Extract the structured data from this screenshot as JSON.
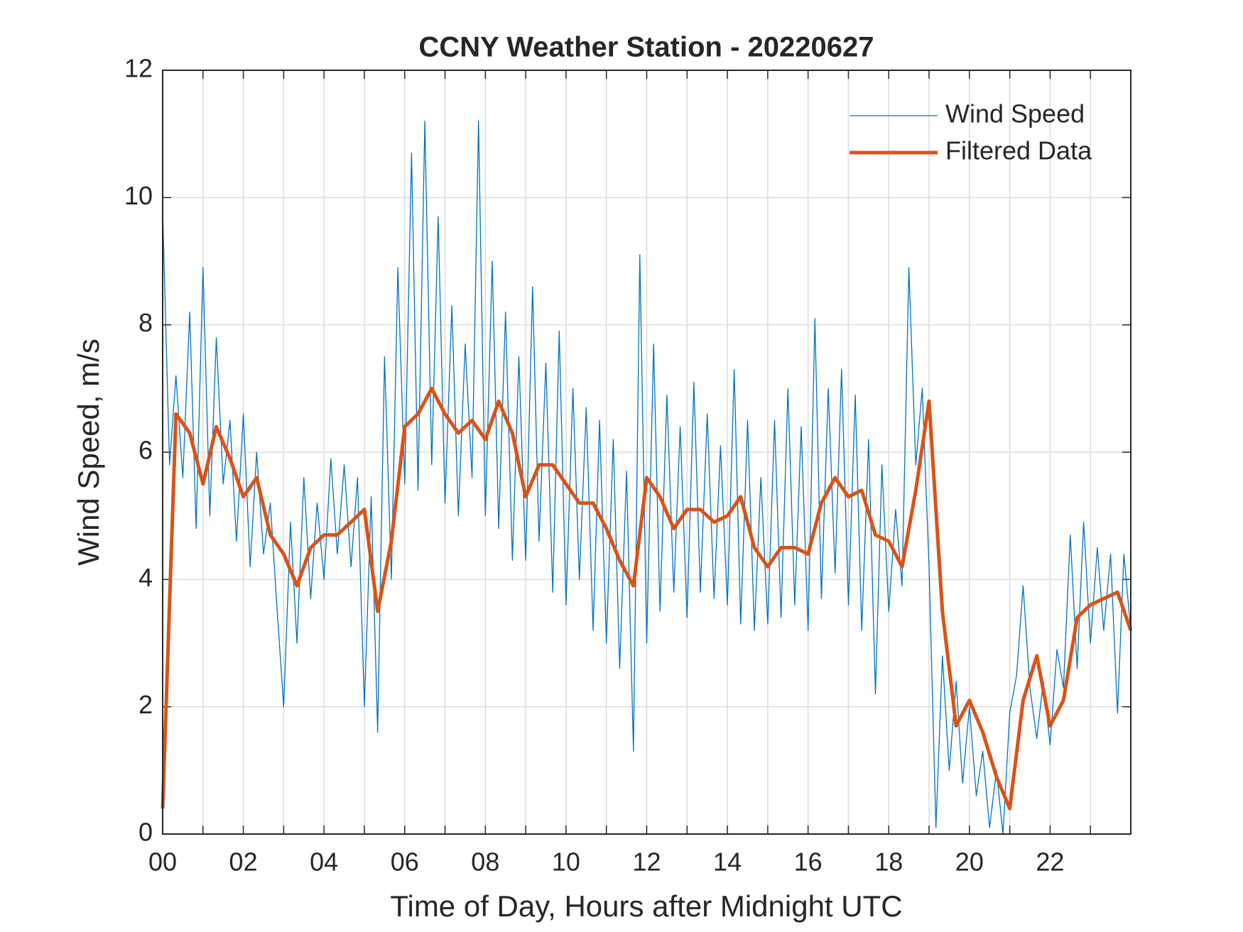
{
  "chart_data": {
    "type": "line",
    "title": "CCNY Weather Station - 20220627",
    "x_label": "Time of Day, Hours after Midnight UTC",
    "y_label": "Wind Speed, m/s",
    "xlim": [
      0,
      24
    ],
    "ylim": [
      0,
      12
    ],
    "xticks": [
      {
        "value": 0,
        "label": "00"
      },
      {
        "value": 2,
        "label": "02"
      },
      {
        "value": 4,
        "label": "04"
      },
      {
        "value": 6,
        "label": "06"
      },
      {
        "value": 8,
        "label": "08"
      },
      {
        "value": 10,
        "label": "10"
      },
      {
        "value": 12,
        "label": "12"
      },
      {
        "value": 14,
        "label": "14"
      },
      {
        "value": 16,
        "label": "16"
      },
      {
        "value": 18,
        "label": "18"
      },
      {
        "value": 20,
        "label": "20"
      },
      {
        "value": 22,
        "label": "22"
      }
    ],
    "x_minor_ticks": [
      1,
      3,
      5,
      7,
      9,
      11,
      13,
      15,
      17,
      19,
      21,
      23
    ],
    "yticks": [
      0,
      2,
      4,
      6,
      8,
      10,
      12
    ],
    "grid": true,
    "legend": "northeast",
    "series": [
      {
        "name": "Wind Speed",
        "color": "#0072bd",
        "width": 1.3,
        "x": [
          0,
          0.17,
          0.33,
          0.5,
          0.67,
          0.83,
          1,
          1.17,
          1.33,
          1.5,
          1.67,
          1.83,
          2,
          2.17,
          2.33,
          2.5,
          2.67,
          2.83,
          3,
          3.17,
          3.33,
          3.5,
          3.67,
          3.83,
          4,
          4.17,
          4.33,
          4.5,
          4.67,
          4.83,
          5,
          5.17,
          5.33,
          5.5,
          5.67,
          5.83,
          6,
          6.17,
          6.33,
          6.5,
          6.67,
          6.83,
          7,
          7.17,
          7.33,
          7.5,
          7.67,
          7.83,
          8,
          8.17,
          8.33,
          8.5,
          8.67,
          8.83,
          9,
          9.17,
          9.33,
          9.5,
          9.67,
          9.83,
          10,
          10.17,
          10.33,
          10.5,
          10.67,
          10.83,
          11,
          11.17,
          11.33,
          11.5,
          11.67,
          11.83,
          12,
          12.17,
          12.33,
          12.5,
          12.67,
          12.83,
          13,
          13.17,
          13.33,
          13.5,
          13.67,
          13.83,
          14,
          14.17,
          14.33,
          14.5,
          14.67,
          14.83,
          15,
          15.17,
          15.33,
          15.5,
          15.67,
          15.83,
          16,
          16.17,
          16.33,
          16.5,
          16.67,
          16.83,
          17,
          17.17,
          17.33,
          17.5,
          17.67,
          17.83,
          18,
          18.17,
          18.33,
          18.5,
          18.67,
          18.83,
          19,
          19.17,
          19.33,
          19.5,
          19.67,
          19.83,
          20,
          20.17,
          20.33,
          20.5,
          20.67,
          20.83,
          21,
          21.17,
          21.33,
          21.5,
          21.67,
          21.83,
          22,
          22.17,
          22.33,
          22.5,
          22.67,
          22.83,
          23,
          23.17,
          23.33,
          23.5,
          23.67,
          23.83,
          24
        ],
        "values": [
          9.8,
          5.8,
          7.2,
          5.6,
          8.2,
          4.8,
          8.9,
          5.0,
          7.8,
          5.5,
          6.5,
          4.6,
          6.6,
          4.2,
          6.0,
          4.4,
          5.2,
          3.6,
          2.0,
          4.9,
          3.0,
          5.6,
          3.7,
          5.2,
          4.0,
          5.9,
          4.4,
          5.8,
          4.2,
          5.6,
          2.0,
          5.3,
          1.6,
          7.5,
          4.0,
          8.9,
          5.5,
          10.7,
          5.4,
          11.2,
          5.8,
          9.7,
          5.2,
          8.3,
          5.0,
          7.7,
          5.6,
          11.2,
          5.0,
          9.0,
          4.8,
          8.2,
          4.3,
          7.5,
          4.3,
          8.6,
          4.6,
          7.4,
          3.8,
          7.9,
          3.6,
          7.0,
          4.0,
          6.7,
          3.2,
          6.5,
          3.0,
          6.2,
          2.6,
          5.7,
          1.3,
          9.1,
          3.0,
          7.7,
          3.5,
          6.9,
          3.8,
          6.4,
          3.4,
          7.1,
          3.8,
          6.6,
          3.7,
          6.1,
          3.6,
          7.3,
          3.3,
          6.5,
          3.2,
          5.6,
          3.3,
          6.5,
          3.4,
          7.0,
          3.6,
          6.4,
          3.2,
          8.1,
          3.7,
          7.0,
          4.1,
          7.3,
          3.6,
          6.9,
          3.2,
          6.2,
          2.2,
          5.8,
          3.5,
          5.1,
          3.9,
          8.9,
          5.8,
          7.0,
          4.2,
          0.1,
          2.8,
          1.0,
          2.4,
          0.8,
          2.0,
          0.6,
          1.3,
          0.1,
          1.0,
          0.0,
          1.9,
          2.5,
          3.9,
          2.3,
          1.5,
          2.4,
          1.4,
          2.9,
          2.3,
          4.7,
          2.6,
          4.9,
          3.0,
          4.5,
          3.2,
          4.4,
          1.9,
          4.4,
          3.2
        ]
      },
      {
        "name": "Filtered Data",
        "color": "#d95319",
        "width": 5,
        "x": [
          0,
          0.33,
          0.67,
          1,
          1.33,
          1.67,
          2,
          2.33,
          2.67,
          3,
          3.33,
          3.67,
          4,
          4.33,
          4.67,
          5,
          5.33,
          5.67,
          6,
          6.33,
          6.67,
          7,
          7.33,
          7.67,
          8,
          8.33,
          8.67,
          9,
          9.33,
          9.67,
          10,
          10.33,
          10.67,
          11,
          11.33,
          11.67,
          12,
          12.33,
          12.67,
          13,
          13.33,
          13.67,
          14,
          14.33,
          14.67,
          15,
          15.33,
          15.67,
          16,
          16.33,
          16.67,
          17,
          17.33,
          17.67,
          18,
          18.33,
          18.67,
          19,
          19.33,
          19.67,
          20,
          20.33,
          20.67,
          21,
          21.33,
          21.67,
          22,
          22.33,
          22.67,
          23,
          23.33,
          23.67,
          24
        ],
        "values": [
          0.4,
          6.6,
          6.3,
          5.5,
          6.4,
          5.9,
          5.3,
          5.6,
          4.7,
          4.4,
          3.9,
          4.5,
          4.7,
          4.7,
          4.9,
          5.1,
          3.5,
          4.6,
          6.4,
          6.6,
          7.0,
          6.6,
          6.3,
          6.5,
          6.2,
          6.8,
          6.3,
          5.3,
          5.8,
          5.8,
          5.5,
          5.2,
          5.2,
          4.8,
          4.3,
          3.9,
          5.6,
          5.3,
          4.8,
          5.1,
          5.1,
          4.9,
          5.0,
          5.3,
          4.5,
          4.2,
          4.5,
          4.5,
          4.4,
          5.2,
          5.6,
          5.3,
          5.4,
          4.7,
          4.6,
          4.2,
          5.4,
          6.8,
          3.5,
          1.7,
          2.1,
          1.6,
          0.9,
          0.4,
          2.1,
          2.8,
          1.7,
          2.1,
          3.4,
          3.6,
          3.7,
          3.8,
          3.2
        ]
      }
    ]
  }
}
